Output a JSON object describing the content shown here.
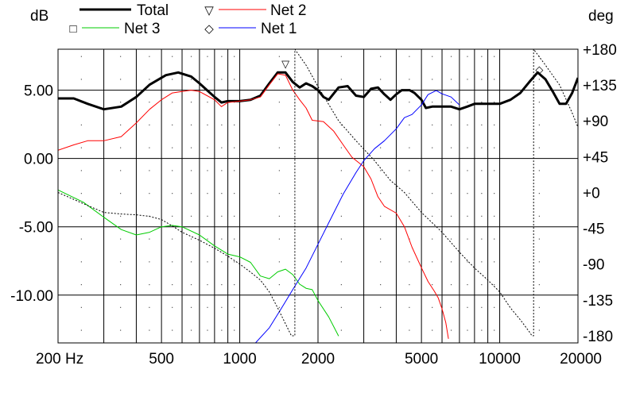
{
  "chart_data": {
    "type": "line",
    "ylabel_left": "dB",
    "ylabel_right": "deg",
    "x_scale": "log",
    "xlim": [
      200,
      20000
    ],
    "ylim_left": [
      -13.5,
      8.0
    ],
    "ylim_right": [
      -189,
      180
    ],
    "x_tick_labels": [
      "200 Hz",
      "500",
      "1000",
      "2000",
      "5000",
      "10000",
      "20000"
    ],
    "x_ticks": [
      200,
      500,
      1000,
      2000,
      5000,
      10000,
      20000
    ],
    "y_tick_labels_left": [
      "5.00",
      "0.00",
      "-5.00",
      "-10.00"
    ],
    "y_ticks_left": [
      5,
      0,
      -5,
      -10
    ],
    "y_tick_labels_right": [
      "+180",
      "+135",
      "+90",
      "+45",
      "+0",
      "-45",
      "-90",
      "-135",
      "-180"
    ],
    "y_ticks_right": [
      180,
      135,
      90,
      45,
      0,
      -45,
      -90,
      -135,
      -180
    ],
    "grid": true,
    "legend": [
      {
        "name": "Total",
        "marker": "",
        "color": "#000000",
        "width": 3
      },
      {
        "name": "Net 2",
        "marker": "▽",
        "color": "#ff0000",
        "width": 1
      },
      {
        "name": "Net 3",
        "marker": "□",
        "color": "#00cc00",
        "width": 1
      },
      {
        "name": "Net 1",
        "marker": "◇",
        "color": "#0000ff",
        "width": 1
      }
    ],
    "series": [
      {
        "name": "Total",
        "axis": "left",
        "color": "#000000",
        "width": 3,
        "points": [
          [
            200,
            4.4
          ],
          [
            230,
            4.4
          ],
          [
            260,
            4.0
          ],
          [
            300,
            3.6
          ],
          [
            350,
            3.8
          ],
          [
            400,
            4.5
          ],
          [
            450,
            5.4
          ],
          [
            520,
            6.1
          ],
          [
            580,
            6.3
          ],
          [
            650,
            6.0
          ],
          [
            700,
            5.5
          ],
          [
            800,
            4.5
          ],
          [
            850,
            4.1
          ],
          [
            900,
            4.2
          ],
          [
            1000,
            4.2
          ],
          [
            1100,
            4.3
          ],
          [
            1200,
            4.6
          ],
          [
            1300,
            5.5
          ],
          [
            1400,
            6.3
          ],
          [
            1500,
            6.3
          ],
          [
            1600,
            5.6
          ],
          [
            1700,
            5.2
          ],
          [
            1800,
            5.5
          ],
          [
            1900,
            5.3
          ],
          [
            2000,
            5.0
          ],
          [
            2100,
            4.5
          ],
          [
            2200,
            4.3
          ],
          [
            2400,
            5.2
          ],
          [
            2600,
            5.3
          ],
          [
            2800,
            4.6
          ],
          [
            3000,
            4.5
          ],
          [
            3200,
            5.1
          ],
          [
            3400,
            5.2
          ],
          [
            3600,
            4.7
          ],
          [
            3800,
            4.3
          ],
          [
            4000,
            4.7
          ],
          [
            4200,
            5.0
          ],
          [
            4500,
            5.0
          ],
          [
            4700,
            4.8
          ],
          [
            5000,
            4.3
          ],
          [
            5200,
            3.7
          ],
          [
            5500,
            3.8
          ],
          [
            6000,
            3.8
          ],
          [
            6500,
            3.8
          ],
          [
            7000,
            3.6
          ],
          [
            7500,
            3.8
          ],
          [
            8000,
            4.0
          ],
          [
            9000,
            4.0
          ],
          [
            10000,
            4.0
          ],
          [
            11000,
            4.3
          ],
          [
            12000,
            4.8
          ],
          [
            13000,
            5.6
          ],
          [
            14000,
            6.3
          ],
          [
            15000,
            5.8
          ],
          [
            16000,
            4.9
          ],
          [
            17000,
            4.0
          ],
          [
            18000,
            4.0
          ],
          [
            19000,
            4.8
          ],
          [
            20000,
            5.9
          ]
        ]
      },
      {
        "name": "Net 2",
        "axis": "left",
        "color": "#ff0000",
        "width": 1,
        "points": [
          [
            200,
            0.6
          ],
          [
            230,
            1.0
          ],
          [
            260,
            1.3
          ],
          [
            300,
            1.3
          ],
          [
            350,
            1.6
          ],
          [
            400,
            2.6
          ],
          [
            450,
            3.6
          ],
          [
            500,
            4.3
          ],
          [
            550,
            4.8
          ],
          [
            600,
            4.9
          ],
          [
            650,
            5.0
          ],
          [
            700,
            4.9
          ],
          [
            800,
            4.3
          ],
          [
            850,
            3.8
          ],
          [
            900,
            4.1
          ],
          [
            1000,
            4.2
          ],
          [
            1100,
            4.3
          ],
          [
            1200,
            4.5
          ],
          [
            1300,
            5.4
          ],
          [
            1400,
            6.2
          ],
          [
            1500,
            6.1
          ],
          [
            1600,
            5.0
          ],
          [
            1700,
            4.3
          ],
          [
            1800,
            3.7
          ],
          [
            1900,
            2.8
          ],
          [
            2100,
            2.7
          ],
          [
            2300,
            2.0
          ],
          [
            2500,
            1.0
          ],
          [
            2700,
            0.1
          ],
          [
            3000,
            -0.6
          ],
          [
            3200,
            -1.5
          ],
          [
            3400,
            -2.8
          ],
          [
            3600,
            -3.5
          ],
          [
            4000,
            -4.0
          ],
          [
            4300,
            -5.0
          ],
          [
            4600,
            -6.5
          ],
          [
            5000,
            -8.0
          ],
          [
            5300,
            -9.0
          ],
          [
            5600,
            -9.7
          ],
          [
            5800,
            -10.2
          ],
          [
            6000,
            -11.0
          ],
          [
            6200,
            -12.0
          ],
          [
            6350,
            -13.2
          ]
        ]
      },
      {
        "name": "Net 3",
        "axis": "left",
        "color": "#00cc00",
        "width": 1,
        "points": [
          [
            200,
            -2.3
          ],
          [
            250,
            -3.2
          ],
          [
            300,
            -4.3
          ],
          [
            350,
            -5.2
          ],
          [
            400,
            -5.6
          ],
          [
            450,
            -5.4
          ],
          [
            500,
            -5.0
          ],
          [
            550,
            -4.9
          ],
          [
            600,
            -5.0
          ],
          [
            700,
            -5.6
          ],
          [
            800,
            -6.4
          ],
          [
            900,
            -7.0
          ],
          [
            1000,
            -7.2
          ],
          [
            1100,
            -7.6
          ],
          [
            1200,
            -8.6
          ],
          [
            1300,
            -8.8
          ],
          [
            1400,
            -8.3
          ],
          [
            1500,
            -8.1
          ],
          [
            1600,
            -8.5
          ],
          [
            1700,
            -9.2
          ],
          [
            1800,
            -9.5
          ],
          [
            1900,
            -9.6
          ],
          [
            2000,
            -10.4
          ],
          [
            2200,
            -11.6
          ],
          [
            2400,
            -13.0
          ]
        ]
      },
      {
        "name": "Net 1",
        "axis": "right",
        "color": "#0000ff",
        "width": 1,
        "points": [
          [
            1150,
            -189
          ],
          [
            1300,
            -170
          ],
          [
            1450,
            -145
          ],
          [
            1600,
            -122
          ],
          [
            1800,
            -95
          ],
          [
            2000,
            -65
          ],
          [
            2200,
            -38
          ],
          [
            2500,
            -2
          ],
          [
            2800,
            25
          ],
          [
            3000,
            40
          ],
          [
            3300,
            55
          ],
          [
            3600,
            65
          ],
          [
            4000,
            80
          ],
          [
            4300,
            94
          ],
          [
            4600,
            98
          ],
          [
            5000,
            110
          ],
          [
            5300,
            123
          ],
          [
            5700,
            128
          ],
          [
            6000,
            124
          ],
          [
            6500,
            120
          ],
          [
            7000,
            110
          ]
        ]
      },
      {
        "name": "Phase",
        "axis": "right",
        "color": "#000000",
        "width": 1,
        "dash": "2,2",
        "points": [
          [
            200,
            0
          ],
          [
            250,
            -14
          ],
          [
            300,
            -25
          ],
          [
            350,
            -27
          ],
          [
            400,
            -28
          ],
          [
            450,
            -30
          ],
          [
            500,
            -34
          ],
          [
            550,
            -42
          ],
          [
            600,
            -50
          ],
          [
            700,
            -60
          ],
          [
            800,
            -70
          ],
          [
            900,
            -80
          ],
          [
            1000,
            -90
          ],
          [
            1100,
            -100
          ],
          [
            1200,
            -110
          ],
          [
            1300,
            -125
          ],
          [
            1400,
            -145
          ],
          [
            1500,
            -165
          ],
          [
            1580,
            -180
          ],
          [
            1630,
            -180
          ],
          [
            1630,
            180
          ],
          [
            1800,
            160
          ],
          [
            2000,
            133
          ],
          [
            2400,
            90
          ],
          [
            2800,
            65
          ],
          [
            3300,
            40
          ],
          [
            3800,
            15
          ],
          [
            4300,
            0
          ],
          [
            5000,
            -25
          ],
          [
            6000,
            -50
          ],
          [
            7000,
            -75
          ],
          [
            8000,
            -95
          ],
          [
            9000,
            -110
          ],
          [
            10000,
            -125
          ],
          [
            11000,
            -145
          ],
          [
            12000,
            -160
          ],
          [
            13000,
            -175
          ],
          [
            13300,
            -180
          ],
          [
            13500,
            -180
          ],
          [
            13500,
            180
          ],
          [
            15000,
            160
          ],
          [
            17000,
            135
          ],
          [
            19000,
            100
          ],
          [
            20000,
            82
          ]
        ]
      }
    ],
    "markers": [
      {
        "series": "Net 2",
        "symbol": "▽",
        "x": 1500,
        "y": 6.9,
        "axis": "left"
      },
      {
        "series": "Total",
        "symbol": "◇",
        "x": 14200,
        "y": 6.5,
        "axis": "left"
      }
    ]
  }
}
